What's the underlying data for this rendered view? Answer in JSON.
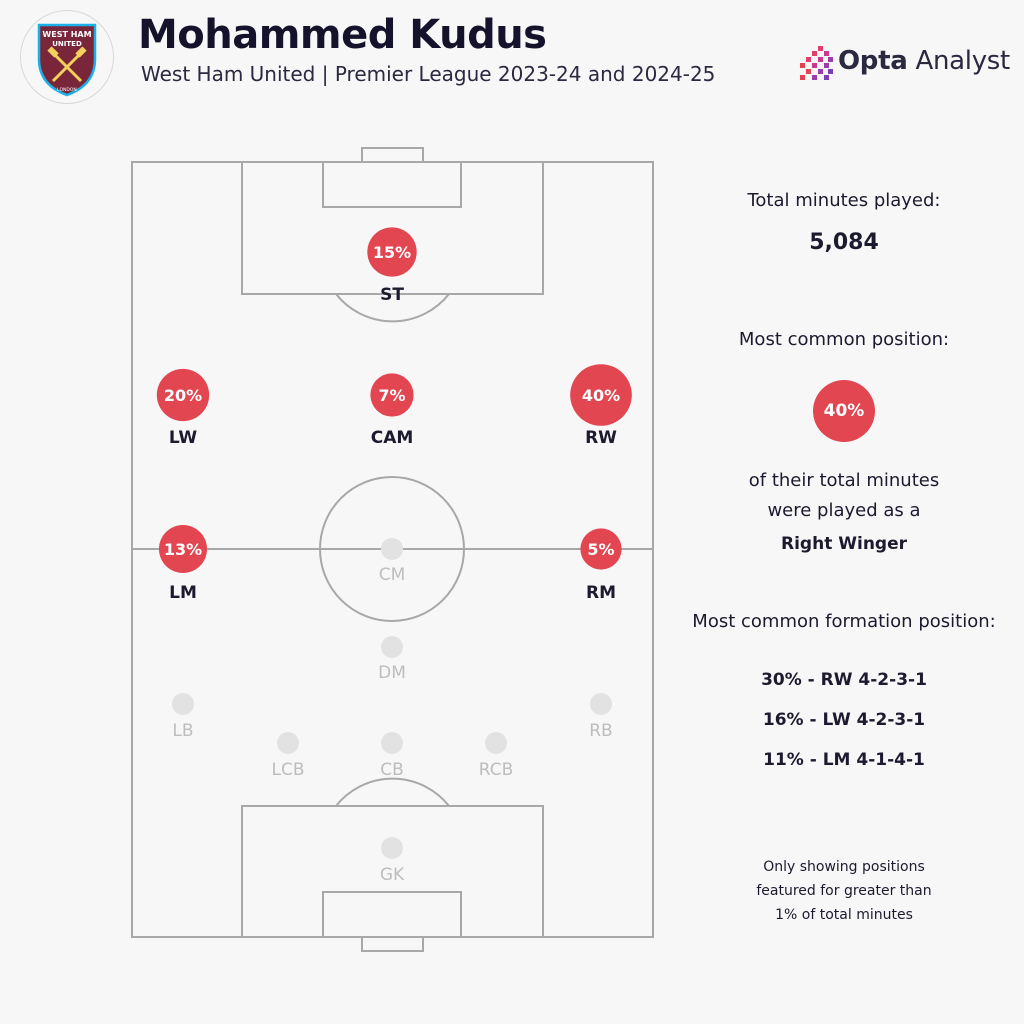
{
  "header": {
    "title": "Mohammed Kudus",
    "subtitle": "West Ham United | Premier League 2023-24 and 2024-25",
    "brand_bold": "Opta",
    "brand_light": "Analyst",
    "crest_text_top": "WEST HAM",
    "crest_text_mid": "UNITED",
    "crest_text_bottom": "LONDON"
  },
  "colors": {
    "accent": "#e14651",
    "inactive": "#e2e2e2",
    "pitch_lines": "#a8a8a8",
    "dark_text": "#1c1a2e",
    "muted_text": "#bdbdbd"
  },
  "chart_data": {
    "type": "table",
    "positions": [
      {
        "label": "ST",
        "value": 15,
        "display": "15%",
        "active": true
      },
      {
        "label": "LW",
        "value": 20,
        "display": "20%",
        "active": true
      },
      {
        "label": "CAM",
        "value": 7,
        "display": "7%",
        "active": true
      },
      {
        "label": "RW",
        "value": 40,
        "display": "40%",
        "active": true
      },
      {
        "label": "LM",
        "value": 13,
        "display": "13%",
        "active": true
      },
      {
        "label": "CM",
        "value": null,
        "display": "",
        "active": false
      },
      {
        "label": "RM",
        "value": 5,
        "display": "5%",
        "active": true
      },
      {
        "label": "DM",
        "value": null,
        "display": "",
        "active": false
      },
      {
        "label": "LB",
        "value": null,
        "display": "",
        "active": false
      },
      {
        "label": "RB",
        "value": null,
        "display": "",
        "active": false
      },
      {
        "label": "LCB",
        "value": null,
        "display": "",
        "active": false
      },
      {
        "label": "CB",
        "value": null,
        "display": "",
        "active": false
      },
      {
        "label": "RCB",
        "value": null,
        "display": "",
        "active": false
      },
      {
        "label": "GK",
        "value": null,
        "display": "",
        "active": false
      }
    ]
  },
  "sidebar": {
    "total_minutes_label": "Total minutes played:",
    "total_minutes_value": "5,084",
    "most_common_label": "Most common position:",
    "most_common_pct": "40%",
    "desc_line1": "of their total minutes",
    "desc_line2": "were played as a",
    "position_name": "Right Winger",
    "formation_label": "Most common formation position:",
    "formations": [
      "30% - RW 4-2-3-1",
      "16% - LW 4-2-3-1",
      "11% - LM 4-1-4-1"
    ],
    "footnote_line1": "Only showing positions",
    "footnote_line2": "featured for greater than",
    "footnote_line3": "1% of total minutes"
  }
}
